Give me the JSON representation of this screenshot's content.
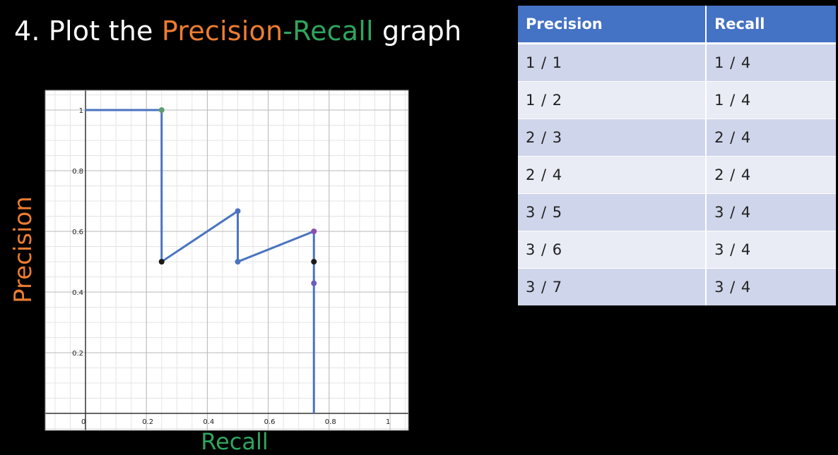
{
  "title": {
    "prefix": "4. Plot the ",
    "precision_word": "Precision",
    "dash": "-",
    "recall_word": "Recall",
    "suffix": " graph"
  },
  "colors": {
    "precision": "#ed7d31",
    "recall": "#2ea55f",
    "line": "#4a74bf",
    "table_header": "#4472c4",
    "row_odd": "#cfd5ea",
    "row_even": "#e9ebf5"
  },
  "chart_data": {
    "type": "line",
    "xlabel": "Recall",
    "ylabel": "Precision",
    "xlim": [
      -0.12,
      1.05
    ],
    "ylim": [
      -0.03,
      1.07
    ],
    "x_ticks": [
      0,
      0.2,
      0.4,
      0.6,
      0.8,
      1
    ],
    "x_tick_labels": [
      "0",
      "0.2",
      "0.4",
      "0.6",
      "0.8",
      "1"
    ],
    "y_ticks": [
      0.2,
      0.4,
      0.6,
      0.8,
      1
    ],
    "y_tick_labels": [
      "0.2",
      "0.4",
      "0.6",
      "0.8",
      "1"
    ],
    "grid": true,
    "series": [
      {
        "x": [
          0,
          0.25,
          0.25,
          0.5,
          0.5,
          0.75,
          0.75
        ],
        "y": [
          1,
          1,
          0.5,
          0.667,
          0.5,
          0.6,
          0
        ]
      }
    ],
    "points": [
      {
        "x": 0.25,
        "y": 1,
        "color": "#5b9e6e"
      },
      {
        "x": 0.25,
        "y": 0.5,
        "color": "#1a1a1a"
      },
      {
        "x": 0.5,
        "y": 0.667,
        "color": "#4a74bf"
      },
      {
        "x": 0.5,
        "y": 0.5,
        "color": "#4a74bf"
      },
      {
        "x": 0.75,
        "y": 0.6,
        "color": "#8a4fb0"
      },
      {
        "x": 0.75,
        "y": 0.5,
        "color": "#1a1a1a"
      },
      {
        "x": 0.75,
        "y": 0.429,
        "color": "#6a5cc0"
      }
    ]
  },
  "table": {
    "headers": [
      "Precision",
      "Recall"
    ],
    "rows": [
      [
        "1 / 1",
        "1 / 4"
      ],
      [
        "1 / 2",
        "1 / 4"
      ],
      [
        "2 / 3",
        "2 / 4"
      ],
      [
        "2 / 4",
        "2 / 4"
      ],
      [
        "3 / 5",
        "3 / 4"
      ],
      [
        "3 / 6",
        "3 / 4"
      ],
      [
        "3 / 7",
        "3 / 4"
      ]
    ]
  }
}
